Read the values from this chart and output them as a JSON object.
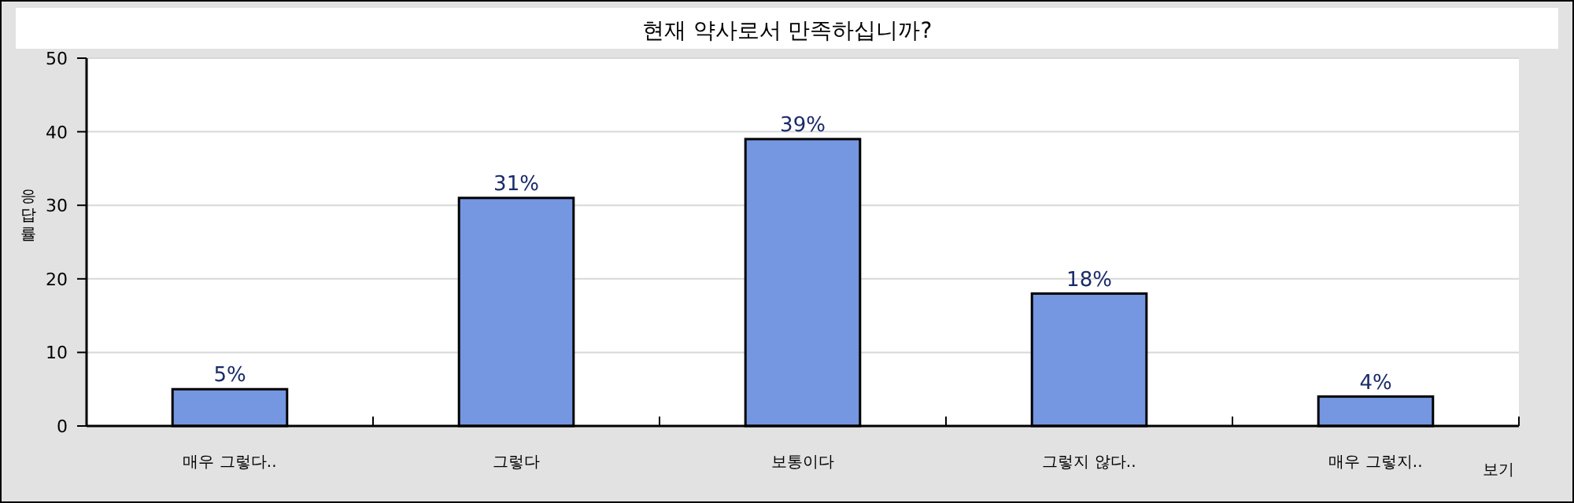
{
  "chart_data": {
    "type": "bar",
    "title": "현재 약사로서 만족하십니까?",
    "ylabel": "응답률",
    "categories": [
      "매우 그렇다..",
      "그렇다",
      "보통이다",
      "그렇지 않다..",
      "매우 그렇지.."
    ],
    "values": [
      5,
      31,
      39,
      18,
      4
    ],
    "value_labels": [
      "5%",
      "31%",
      "39%",
      "18%",
      "4%"
    ],
    "color": "#7596e0",
    "ylim": [
      0,
      50
    ],
    "yticks": [
      0,
      10,
      20,
      30,
      40,
      50
    ],
    "grid": "y",
    "annotations": [
      "보기"
    ]
  }
}
